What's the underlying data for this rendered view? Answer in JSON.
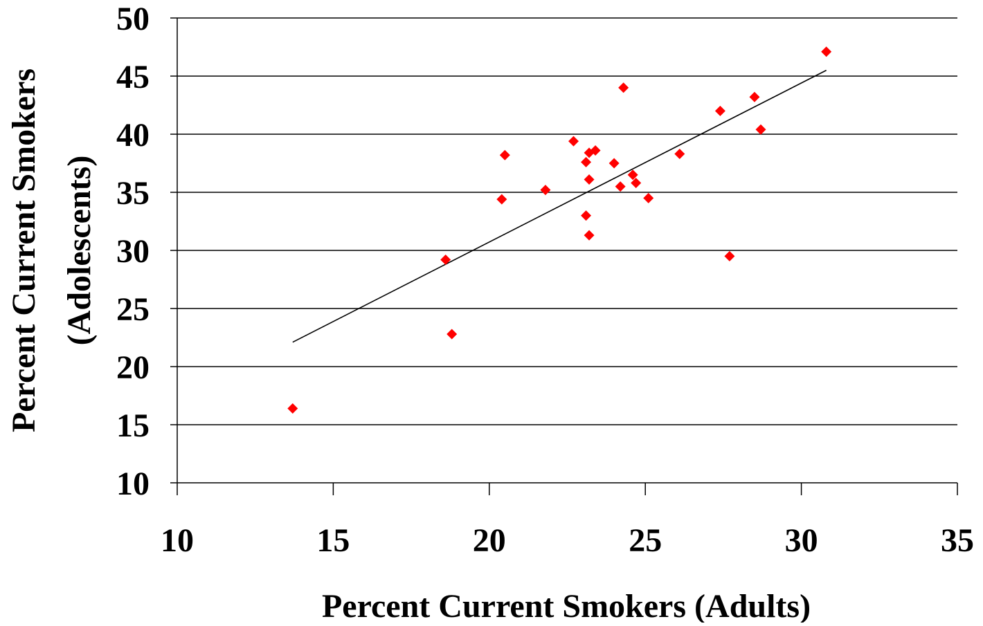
{
  "chart_data": {
    "type": "scatter",
    "title": "",
    "xlabel": "Percent Current Smokers (Adults)",
    "ylabel_line1": "Percent Current Smokers",
    "ylabel_line2": "(Adolescents)",
    "xlim": [
      10,
      35
    ],
    "ylim": [
      10,
      50
    ],
    "x_ticks": [
      10,
      15,
      20,
      25,
      30,
      35
    ],
    "y_ticks": [
      10,
      15,
      20,
      25,
      30,
      35,
      40,
      45,
      50
    ],
    "grid": "horizontal",
    "marker_color": "#ff0000",
    "trendline_color": "#000000",
    "points": [
      {
        "x": 13.7,
        "y": 16.4
      },
      {
        "x": 18.6,
        "y": 29.2
      },
      {
        "x": 18.8,
        "y": 22.8
      },
      {
        "x": 20.4,
        "y": 34.4
      },
      {
        "x": 20.5,
        "y": 38.2
      },
      {
        "x": 21.8,
        "y": 35.2
      },
      {
        "x": 22.7,
        "y": 39.4
      },
      {
        "x": 23.1,
        "y": 37.6
      },
      {
        "x": 23.2,
        "y": 38.4
      },
      {
        "x": 23.4,
        "y": 38.6
      },
      {
        "x": 23.2,
        "y": 36.1
      },
      {
        "x": 23.1,
        "y": 33.0
      },
      {
        "x": 23.2,
        "y": 31.3
      },
      {
        "x": 24.0,
        "y": 37.5
      },
      {
        "x": 24.2,
        "y": 35.5
      },
      {
        "x": 24.3,
        "y": 44.0
      },
      {
        "x": 24.6,
        "y": 36.5
      },
      {
        "x": 24.7,
        "y": 35.8
      },
      {
        "x": 25.1,
        "y": 34.5
      },
      {
        "x": 26.1,
        "y": 38.3
      },
      {
        "x": 27.4,
        "y": 42.0
      },
      {
        "x": 27.7,
        "y": 29.5
      },
      {
        "x": 28.5,
        "y": 43.2
      },
      {
        "x": 28.7,
        "y": 40.4
      },
      {
        "x": 30.8,
        "y": 47.1
      }
    ],
    "trendline": [
      {
        "x": 13.7,
        "y": 22.1
      },
      {
        "x": 30.8,
        "y": 45.5
      }
    ]
  }
}
